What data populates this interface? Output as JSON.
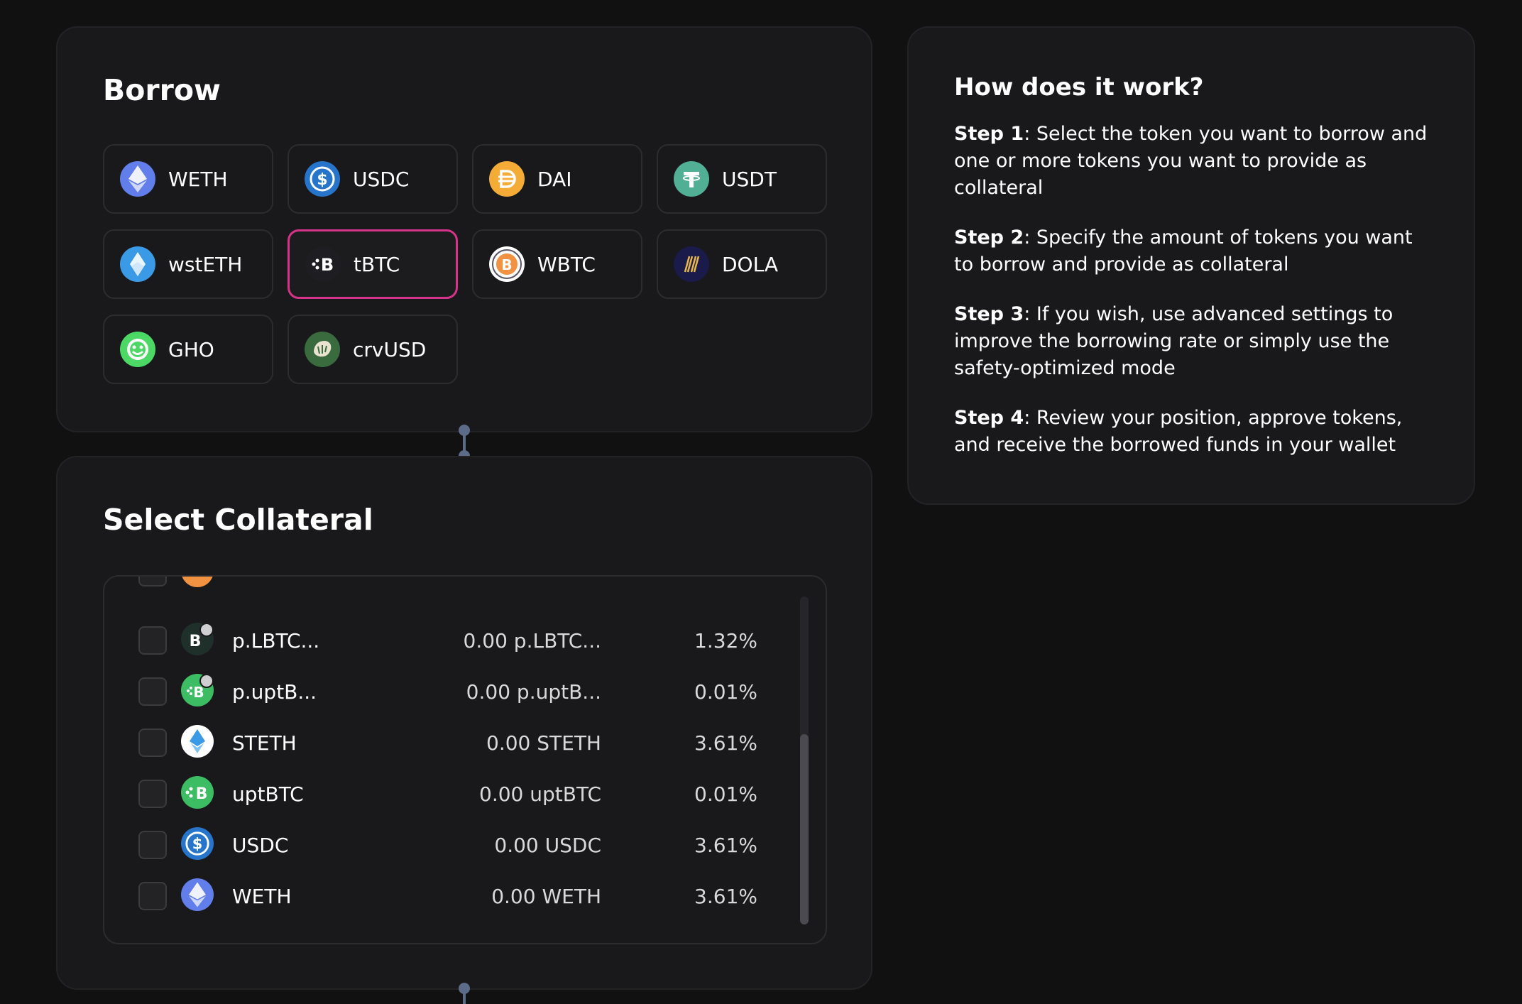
{
  "borrow": {
    "title": "Borrow",
    "tokens": [
      {
        "label": "WETH",
        "icon": "weth-icon",
        "color": "#627eea"
      },
      {
        "label": "USDC",
        "icon": "usdc-icon",
        "color": "#2775ca"
      },
      {
        "label": "DAI",
        "icon": "dai-icon",
        "color": "#f5ac37"
      },
      {
        "label": "USDT",
        "icon": "usdt-icon",
        "color": "#50af95"
      },
      {
        "label": "wstETH",
        "icon": "wsteth-icon",
        "color": "#3b9ae6"
      },
      {
        "label": "tBTC",
        "icon": "tbtc-icon",
        "color": "#1e1e22",
        "selected": true
      },
      {
        "label": "WBTC",
        "icon": "wbtc-icon",
        "color": "#f09242"
      },
      {
        "label": "DOLA",
        "icon": "dola-icon",
        "color": "#1a1b4b"
      },
      {
        "label": "GHO",
        "icon": "gho-icon",
        "color": "#4bd865"
      },
      {
        "label": "crvUSD",
        "icon": "crvusd-icon",
        "color": "#3a6b3f"
      }
    ]
  },
  "collateral": {
    "title": "Select Collateral",
    "rows": [
      {
        "name": "p.LBTC...",
        "balance": "0.00 p.LBTC...",
        "rate": "1.32%",
        "icon": "p-lbtc-icon"
      },
      {
        "name": "p.uptB...",
        "balance": "0.00 p.uptB...",
        "rate": "0.01%",
        "icon": "p-uptbtc-icon"
      },
      {
        "name": "STETH",
        "balance": "0.00 STETH",
        "rate": "3.61%",
        "icon": "steth-icon"
      },
      {
        "name": "uptBTC",
        "balance": "0.00 uptBTC",
        "rate": "0.01%",
        "icon": "uptbtc-icon"
      },
      {
        "name": "USDC",
        "balance": "0.00 USDC",
        "rate": "3.61%",
        "icon": "usdc-icon"
      },
      {
        "name": "WETH",
        "balance": "0.00 WETH",
        "rate": "3.61%",
        "icon": "weth-icon"
      }
    ]
  },
  "help": {
    "title": "How does it work?",
    "steps": [
      {
        "label": "Step 1",
        "text": ": Select the token you want to borrow and one or more tokens you want to provide as collateral"
      },
      {
        "label": "Step 2",
        "text": ": Specify the amount of tokens you want to borrow and provide as collateral"
      },
      {
        "label": "Step 3",
        "text": ": If you wish, use advanced settings to improve the borrowing rate or simply use the safety-optimized mode"
      },
      {
        "label": "Step 4",
        "text": ": Review your position, approve tokens, and receive the borrowed funds in your wallet"
      }
    ]
  },
  "colors": {
    "selected_border": "#d6348a",
    "connector": "#5c6b87",
    "card_bg": "#19191b"
  }
}
